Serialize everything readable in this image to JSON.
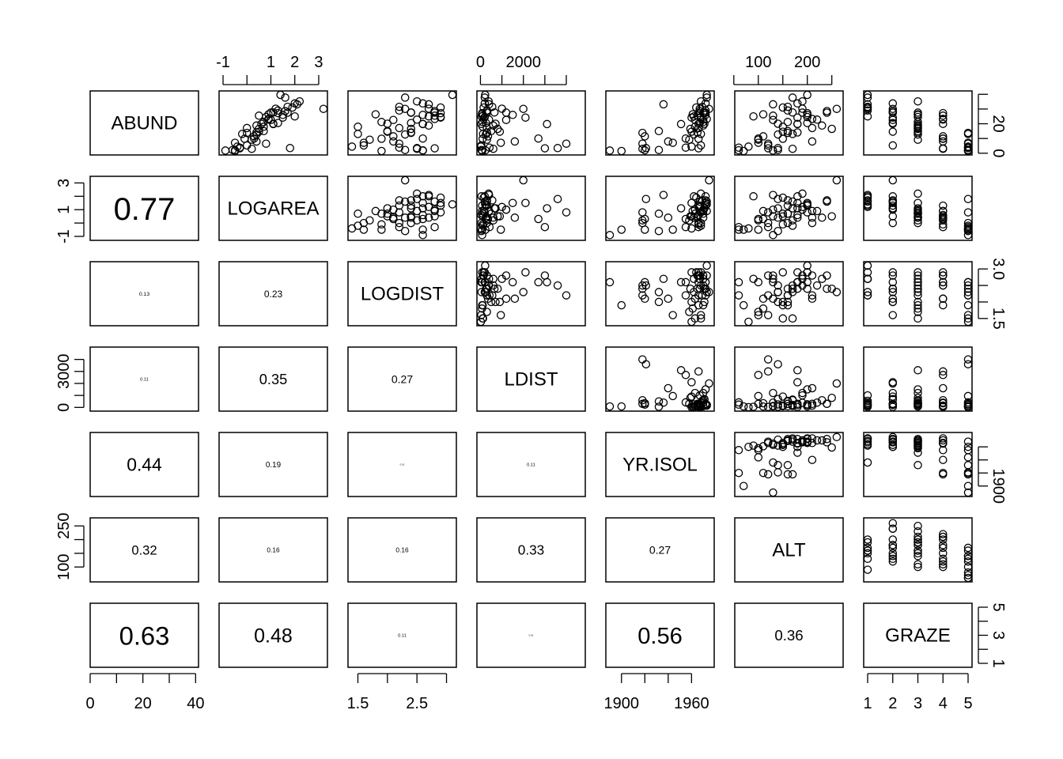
{
  "chart_data": {
    "type": "scatter",
    "variables": [
      "ABUND",
      "LOGAREA",
      "LOGDIST",
      "LDIST",
      "YR.ISOL",
      "ALT",
      "GRAZE"
    ],
    "ranges": [
      [
        1.5,
        39.6
      ],
      [
        -1.0,
        3.2
      ],
      [
        1.4,
        3.1
      ],
      [
        20,
        4700
      ],
      [
        1890,
        1976
      ],
      [
        60,
        265
      ],
      [
        1,
        5
      ]
    ],
    "axes": {
      "top": [
        {
          "col": 1,
          "ticks": [
            -1,
            0,
            1,
            2,
            3
          ],
          "labels": [
            "-1",
            "1",
            "2",
            "3"
          ]
        },
        {
          "col": 3,
          "ticks": [
            0,
            1000,
            2000,
            3000,
            4000
          ],
          "labels": [
            "0",
            "2000"
          ]
        },
        {
          "col": 5,
          "ticks": [
            50,
            100,
            150,
            200,
            250
          ],
          "labels": [
            "100",
            "200"
          ]
        }
      ],
      "bottom": [
        {
          "col": 0,
          "ticks": [
            0,
            10,
            20,
            30,
            40
          ],
          "labels": [
            "0",
            "20",
            "40"
          ]
        },
        {
          "col": 2,
          "ticks": [
            1.5,
            2.0,
            2.5,
            3.0
          ],
          "labels": [
            "1.5",
            "2.5"
          ]
        },
        {
          "col": 4,
          "ticks": [
            1900,
            1920,
            1940,
            1960
          ],
          "labels": [
            "1900",
            "1960"
          ]
        },
        {
          "col": 6,
          "ticks": [
            1,
            2,
            3,
            4,
            5
          ],
          "labels": [
            "1",
            "2",
            "3",
            "4",
            "5"
          ]
        }
      ],
      "left": [
        {
          "row": 1,
          "ticks": [
            -1,
            0,
            1,
            2,
            3
          ],
          "labels": [
            "-1",
            "1",
            "3"
          ]
        },
        {
          "row": 3,
          "ticks": [
            0,
            1000,
            2000,
            3000,
            4000
          ],
          "labels": [
            "0",
            "3000"
          ]
        },
        {
          "row": 5,
          "ticks": [
            100,
            150,
            200,
            250
          ],
          "labels": [
            "100",
            "250"
          ]
        }
      ],
      "right": [
        {
          "row": 0,
          "ticks": [
            0,
            10,
            20,
            30,
            40
          ],
          "labels": [
            "0",
            "20"
          ]
        },
        {
          "row": 2,
          "ticks": [
            1.5,
            2.0,
            2.5,
            3.0
          ],
          "labels": [
            "1.5",
            "3.0"
          ]
        },
        {
          "row": 4,
          "ticks": [
            1900,
            1920,
            1940,
            1960
          ],
          "labels": [
            "1900"
          ]
        },
        {
          "row": 6,
          "ticks": [
            1,
            2,
            3,
            4,
            5
          ],
          "labels": [
            "1",
            "3",
            "5"
          ]
        }
      ]
    },
    "correlations": [
      {
        "row": 1,
        "col": 0,
        "value": "0.77"
      },
      {
        "row": 2,
        "col": 0,
        "value": "0.13"
      },
      {
        "row": 2,
        "col": 1,
        "value": "0.23"
      },
      {
        "row": 3,
        "col": 0,
        "value": "0.11"
      },
      {
        "row": 3,
        "col": 1,
        "value": "0.35"
      },
      {
        "row": 3,
        "col": 2,
        "value": "0.27"
      },
      {
        "row": 4,
        "col": 0,
        "value": "0.44"
      },
      {
        "row": 4,
        "col": 1,
        "value": "0.19"
      },
      {
        "row": 4,
        "col": 2,
        "value": "0.01"
      },
      {
        "row": 4,
        "col": 3,
        "value": "0.11"
      },
      {
        "row": 5,
        "col": 0,
        "value": "0.32"
      },
      {
        "row": 5,
        "col": 1,
        "value": "0.16"
      },
      {
        "row": 5,
        "col": 2,
        "value": "0.16"
      },
      {
        "row": 5,
        "col": 3,
        "value": "0.33"
      },
      {
        "row": 5,
        "col": 4,
        "value": "0.27"
      },
      {
        "row": 6,
        "col": 0,
        "value": "0.63"
      },
      {
        "row": 6,
        "col": 1,
        "value": "0.48"
      },
      {
        "row": 6,
        "col": 2,
        "value": "0.11"
      },
      {
        "row": 6,
        "col": 3,
        "value": "0.01"
      },
      {
        "row": 6,
        "col": 4,
        "value": "0.56"
      },
      {
        "row": 6,
        "col": 5,
        "value": "0.36"
      }
    ],
    "observations": [
      [
        5.3,
        0.0,
        1.6,
        40,
        1968,
        120,
        2
      ],
      [
        2.0,
        -0.5,
        2.6,
        230,
        1920,
        60,
        5
      ],
      [
        1.5,
        -0.5,
        1.9,
        80,
        1900,
        70,
        5
      ],
      [
        17.1,
        0.0,
        2.2,
        300,
        1966,
        210,
        3
      ],
      [
        13.8,
        0.0,
        2.4,
        300,
        1918,
        160,
        5
      ],
      [
        14.1,
        0.4,
        2.4,
        300,
        1965,
        180,
        3
      ],
      [
        3.8,
        -0.3,
        2.2,
        420,
        1955,
        60,
        5
      ],
      [
        2.2,
        -0.6,
        2.3,
        50,
        1932,
        140,
        5
      ],
      [
        3.3,
        -0.3,
        2.8,
        3000,
        1966,
        120,
        4
      ],
      [
        3.0,
        0.2,
        2.5,
        600,
        1918,
        170,
        4
      ],
      [
        27.6,
        1.0,
        2.8,
        1200,
        1970,
        190,
        3
      ],
      [
        1.8,
        -0.9,
        2.6,
        80,
        1890,
        130,
        5
      ],
      [
        21.2,
        0.7,
        1.9,
        100,
        1970,
        160,
        3
      ],
      [
        14.6,
        0.5,
        2.0,
        900,
        1960,
        150,
        2
      ],
      [
        8.0,
        0.4,
        2.1,
        1600,
        1940,
        210,
        4
      ],
      [
        3.5,
        1.8,
        2.5,
        3600,
        1921,
        140,
        5
      ],
      [
        29.0,
        1.3,
        2.2,
        300,
        1972,
        160,
        1
      ],
      [
        24.2,
        1.5,
        2.9,
        2100,
        1960,
        180,
        2
      ],
      [
        19.8,
        1.1,
        2.6,
        3100,
        1951,
        180,
        3
      ],
      [
        20.5,
        1.3,
        2.4,
        260,
        1967,
        200,
        2
      ],
      [
        25.0,
        2.0,
        2.7,
        50,
        1962,
        90,
        1
      ],
      [
        27.5,
        1.7,
        2.4,
        300,
        1972,
        240,
        2
      ],
      [
        31.0,
        1.9,
        2.9,
        150,
        1964,
        150,
        1
      ],
      [
        30.1,
        3.2,
        2.3,
        2000,
        1975,
        260,
        2
      ],
      [
        33.2,
        2.1,
        2.7,
        400,
        1936,
        130,
        1
      ],
      [
        37.8,
        1.6,
        2.3,
        200,
        1973,
        170,
        1
      ],
      [
        26.4,
        0.9,
        1.8,
        70,
        1961,
        110,
        3
      ],
      [
        15.0,
        0.7,
        2.0,
        500,
        1932,
        160,
        3
      ],
      [
        9.2,
        0.2,
        1.7,
        300,
        1958,
        100,
        3
      ],
      [
        22.6,
        1.0,
        2.1,
        1200,
        1963,
        130,
        2
      ],
      [
        24.6,
        0.8,
        2.9,
        200,
        1968,
        200,
        3
      ],
      [
        18.8,
        0.4,
        2.7,
        600,
        1970,
        230,
        3
      ],
      [
        9.8,
        -0.1,
        1.9,
        100,
        1966,
        150,
        4
      ],
      [
        11.5,
        0.3,
        2.1,
        350,
        1920,
        110,
        4
      ],
      [
        30.2,
        1.2,
        2.7,
        1000,
        1967,
        190,
        1
      ],
      [
        39.6,
        1.4,
        3.1,
        220,
        1973,
        200,
        1
      ],
      [
        27.7,
        1.1,
        2.4,
        650,
        1971,
        170,
        2
      ],
      [
        16.5,
        0.5,
        2.4,
        800,
        1959,
        250,
        3
      ],
      [
        19.9,
        0.6,
        2.6,
        40,
        1966,
        180,
        4
      ],
      [
        22.8,
        0.9,
        2.5,
        400,
        1970,
        220,
        4
      ],
      [
        4.5,
        -0.4,
        1.4,
        20,
        1960,
        80,
        5
      ],
      [
        12.7,
        0.4,
        2.3,
        250,
        1962,
        140,
        3
      ],
      [
        26.0,
        1.5,
        2.6,
        1500,
        1972,
        200,
        3
      ],
      [
        13.1,
        -0.2,
        1.5,
        120,
        1968,
        170,
        5
      ],
      [
        31.5,
        1.7,
        2.2,
        550,
        1969,
        160,
        1
      ],
      [
        25.5,
        0.5,
        2.8,
        120,
        1965,
        130,
        4
      ],
      [
        6.5,
        0.8,
        2.2,
        4000,
        1918,
        120,
        5
      ],
      [
        20.0,
        1.1,
        2.0,
        700,
        1971,
        140,
        2
      ],
      [
        23.3,
        0.9,
        2.8,
        150,
        1973,
        210,
        4
      ],
      [
        35.2,
        2.2,
        2.5,
        380,
        1968,
        190,
        3
      ],
      [
        28.6,
        1.6,
        2.8,
        300,
        1967,
        240,
        2
      ],
      [
        7.1,
        -0.5,
        1.6,
        950,
        1944,
        100,
        5
      ],
      [
        33.8,
        2.0,
        2.6,
        200,
        1972,
        180,
        2
      ],
      [
        18.0,
        0.7,
        1.5,
        100,
        1963,
        150,
        3
      ],
      [
        27.2,
        1.3,
        2.9,
        80,
        1966,
        200,
        4
      ],
      [
        10.0,
        0.3,
        2.6,
        2700,
        1955,
        100,
        4
      ]
    ]
  }
}
